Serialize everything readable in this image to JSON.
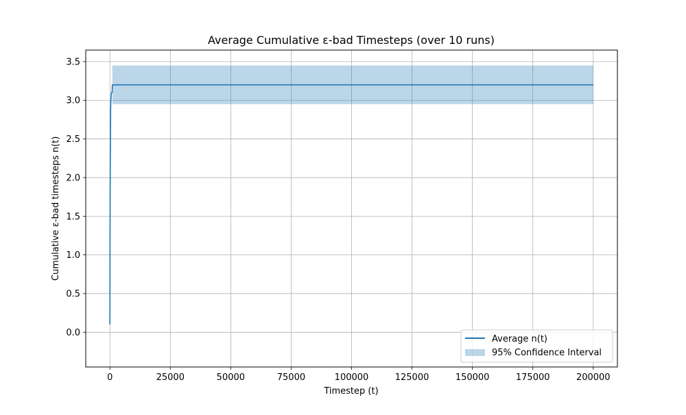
{
  "chart_data": {
    "type": "line",
    "title": "Average Cumulative ε-bad Timesteps (over 10 runs)",
    "xlabel": "Timestep (t)",
    "ylabel": "Cumulative ε-bad timesteps n(t)",
    "xlim": [
      -10000,
      210000
    ],
    "ylim": [
      -0.45,
      3.65
    ],
    "xticks": [
      0,
      25000,
      50000,
      75000,
      100000,
      125000,
      150000,
      175000,
      200000
    ],
    "xtick_labels": [
      "0",
      "25000",
      "50000",
      "75000",
      "100000",
      "125000",
      "150000",
      "175000",
      "200000"
    ],
    "yticks": [
      0.0,
      0.5,
      1.0,
      1.5,
      2.0,
      2.5,
      3.0,
      3.5
    ],
    "ytick_labels": [
      "0.0",
      "0.5",
      "1.0",
      "1.5",
      "2.0",
      "2.5",
      "3.0",
      "3.5"
    ],
    "grid": true,
    "legend_position": "lower-right",
    "series": [
      {
        "name": "Average n(t)",
        "color": "#1f77b4",
        "x": [
          0,
          30,
          80,
          150,
          250,
          300,
          400,
          600,
          900,
          1000,
          200000
        ],
        "y": [
          0.1,
          0.9,
          1.6,
          2.2,
          2.6,
          2.9,
          3.0,
          3.1,
          3.1,
          3.2,
          3.2
        ]
      }
    ],
    "confidence_band": {
      "name": "95% Confidence Interval",
      "color": "#1f77b4",
      "opacity": 0.3,
      "x": [
        1000,
        200000
      ],
      "lower": [
        2.95,
        2.95
      ],
      "upper": [
        3.45,
        3.45
      ]
    }
  }
}
